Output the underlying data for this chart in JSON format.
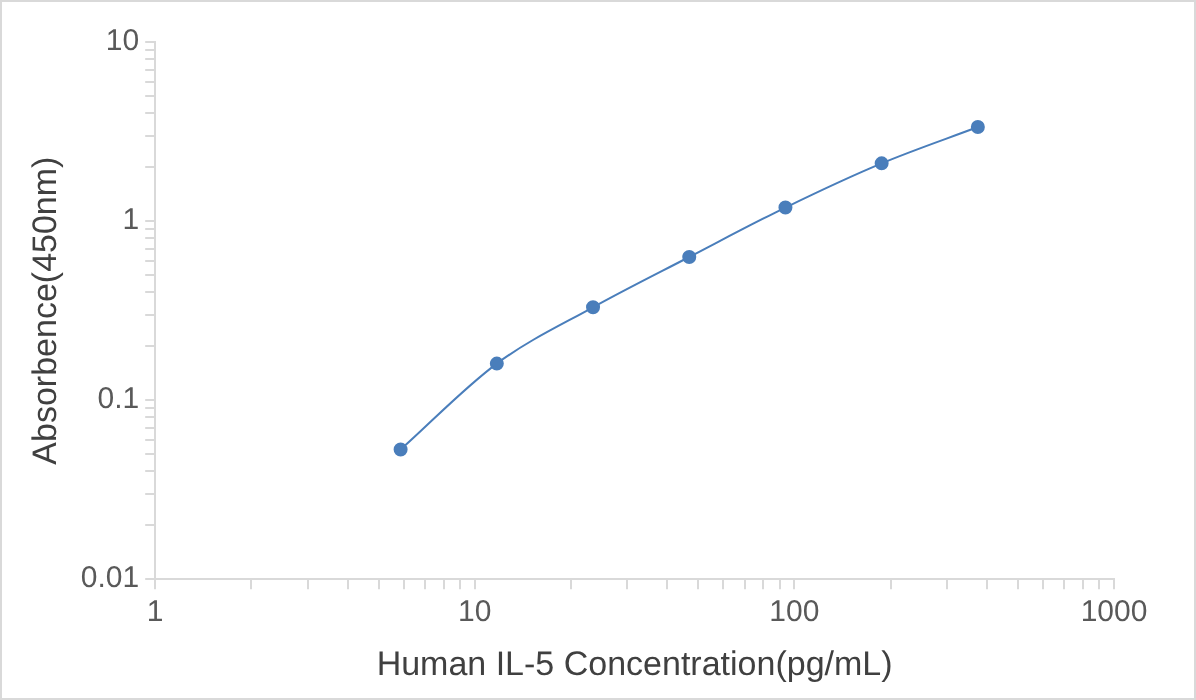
{
  "chart_data": {
    "type": "line",
    "xlabel": "Human IL-5 Concentration(pg/mL)",
    "ylabel": "Absorbence(450nm)",
    "x": [
      5.86,
      11.72,
      23.44,
      46.88,
      93.75,
      187.5,
      375
    ],
    "series": [
      {
        "color": "#4a7ebb",
        "values": [
          0.053,
          0.16,
          0.33,
          0.63,
          1.19,
          2.1,
          3.35
        ]
      }
    ],
    "log": "xy",
    "xlim": [
      1,
      1000
    ],
    "ylim": [
      0.01,
      10
    ],
    "xticks": [
      1,
      {
        "value": 2,
        "label": null
      },
      {
        "value": 3,
        "label": null
      },
      {
        "value": 4,
        "label": null
      },
      {
        "value": 5,
        "label": null
      },
      {
        "value": 6,
        "label": null
      },
      {
        "value": 7,
        "label": null
      },
      {
        "value": 8,
        "label": null
      },
      {
        "value": 9,
        "label": null
      },
      10,
      {
        "value": 20,
        "label": null
      },
      {
        "value": 30,
        "label": null
      },
      {
        "value": 40,
        "label": null
      },
      {
        "value": 50,
        "label": null
      },
      {
        "value": 60,
        "label": null
      },
      {
        "value": 70,
        "label": null
      },
      {
        "value": 80,
        "label": null
      },
      {
        "value": 90,
        "label": null
      },
      100,
      {
        "value": 200,
        "label": null
      },
      {
        "value": 300,
        "label": null
      },
      {
        "value": 400,
        "label": null
      },
      {
        "value": 500,
        "label": null
      },
      {
        "value": 600,
        "label": null
      },
      {
        "value": 700,
        "label": null
      },
      {
        "value": 800,
        "label": null
      },
      {
        "value": 900,
        "label": null
      },
      1000
    ],
    "yticks": [
      0.01,
      {
        "value": 0.02,
        "label": null
      },
      {
        "value": 0.03,
        "label": null
      },
      {
        "value": 0.04,
        "label": null
      },
      {
        "value": 0.05,
        "label": null
      },
      {
        "value": 0.06,
        "label": null
      },
      {
        "value": 0.07,
        "label": null
      },
      {
        "value": 0.08,
        "label": null
      },
      {
        "value": 0.09,
        "label": null
      },
      0.1,
      {
        "value": 0.2,
        "label": null
      },
      {
        "value": 0.3,
        "label": null
      },
      {
        "value": 0.4,
        "label": null
      },
      {
        "value": 0.5,
        "label": null
      },
      {
        "value": 0.6,
        "label": null
      },
      {
        "value": 0.7,
        "label": null
      },
      {
        "value": 0.8,
        "label": null
      },
      {
        "value": 0.9,
        "label": null
      },
      1,
      {
        "value": 2,
        "label": null
      },
      {
        "value": 3,
        "label": null
      },
      {
        "value": 4,
        "label": null
      },
      {
        "value": 5,
        "label": null
      },
      {
        "value": 6,
        "label": null
      },
      {
        "value": 7,
        "label": null
      },
      {
        "value": 8,
        "label": null
      },
      {
        "value": 9,
        "label": null
      },
      10
    ],
    "grid": false,
    "legend": false,
    "marker": "circle",
    "line_style": "solid"
  }
}
